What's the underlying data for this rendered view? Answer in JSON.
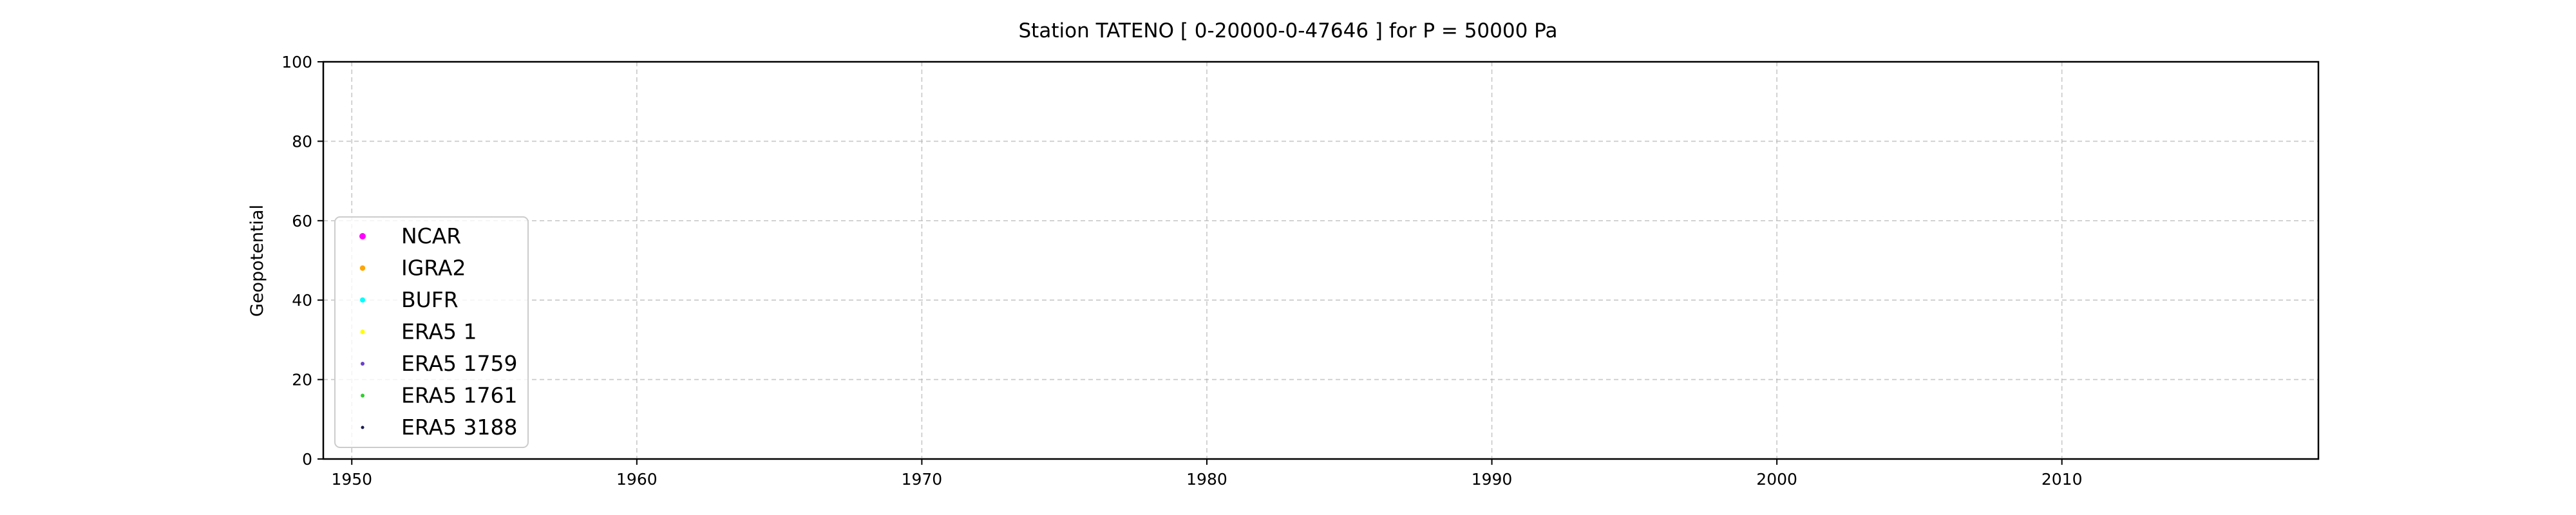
{
  "chart_data": {
    "type": "scatter",
    "title": "Station  TATENO [ 0-20000-0-47646 ]  for P = 50000 Pa",
    "xlabel": "",
    "ylabel": "Geopotential",
    "xlim": [
      1949,
      2019
    ],
    "ylim": [
      0,
      100
    ],
    "x_ticks": [
      1950,
      1960,
      1970,
      1980,
      1990,
      2000,
      2010
    ],
    "y_ticks": [
      0,
      20,
      40,
      60,
      80,
      100
    ],
    "grid": true,
    "legend_position": "lower-left",
    "series": [
      {
        "name": "NCAR",
        "color": "#ff00ff",
        "marker_size": 5,
        "points": []
      },
      {
        "name": "IGRA2",
        "color": "#ffa500",
        "marker_size": 4.2,
        "points": []
      },
      {
        "name": "BUFR",
        "color": "#00ffff",
        "marker_size": 4,
        "points": []
      },
      {
        "name": "ERA5 1",
        "color": "#ffff00",
        "marker_size": 3.5,
        "points": []
      },
      {
        "name": "ERA5 1759",
        "color": "#6a3fc8",
        "marker_size": 3,
        "points": []
      },
      {
        "name": "ERA5 1761",
        "color": "#32cd32",
        "marker_size": 3,
        "points": []
      },
      {
        "name": "ERA5 3188",
        "color": "#1a1a4e",
        "marker_size": 2.5,
        "points": []
      }
    ]
  }
}
